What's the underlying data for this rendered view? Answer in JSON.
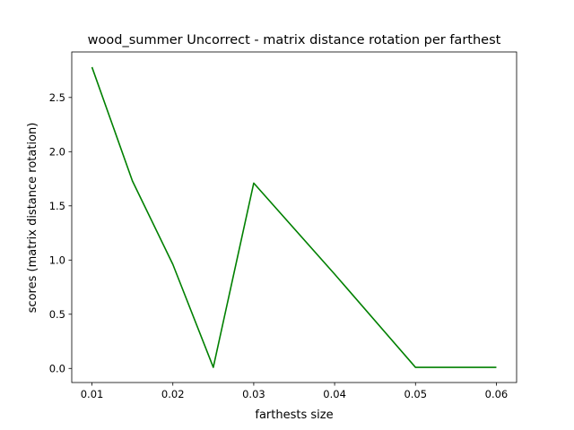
{
  "chart_data": {
    "type": "line",
    "title": "wood_summer Uncorrect - matrix distance rotation per farthest",
    "xlabel": "farthests size",
    "ylabel": "scores (matrix distance rotation)",
    "x": [
      0.01,
      0.015,
      0.02,
      0.025,
      0.03,
      0.04,
      0.05,
      0.06
    ],
    "series": [
      {
        "values": [
          2.78,
          1.73,
          0.96,
          0.01,
          1.71,
          0.87,
          0.01,
          0.01
        ],
        "color": "#008000"
      }
    ],
    "xlim": [
      0.0075,
      0.0625
    ],
    "ylim": [
      -0.13,
      2.92
    ],
    "xticks": [
      0.01,
      0.02,
      0.03,
      0.04,
      0.05,
      0.06
    ],
    "xtick_labels": [
      "0.01",
      "0.02",
      "0.03",
      "0.04",
      "0.05",
      "0.06"
    ],
    "yticks": [
      0.0,
      0.5,
      1.0,
      1.5,
      2.0,
      2.5
    ],
    "ytick_labels": [
      "0.0",
      "0.5",
      "1.0",
      "1.5",
      "2.0",
      "2.5"
    ],
    "grid": false,
    "legend": "none"
  }
}
